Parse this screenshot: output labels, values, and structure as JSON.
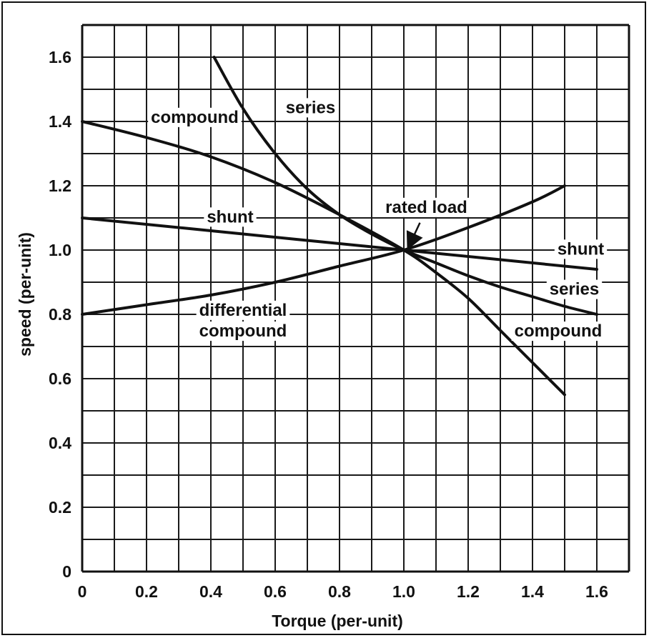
{
  "chart_data": {
    "type": "line",
    "title": "",
    "xlabel": "Torque (per-unit)",
    "ylabel": "speed (per-unit)",
    "xlim": [
      0,
      1.7
    ],
    "ylim": [
      0,
      1.7
    ],
    "grid": true,
    "x_ticks": [
      "0",
      "0.2",
      "0.4",
      "0.6",
      "0.8",
      "1.0",
      "1.2",
      "1.4",
      "1.6"
    ],
    "y_ticks": [
      "0",
      "0.2",
      "0.4",
      "0.6",
      "0.8",
      "1.0",
      "1.2",
      "1.4",
      "1.6"
    ],
    "series": [
      {
        "name": "series",
        "x": [
          0.41,
          0.5,
          0.6,
          0.7,
          0.8,
          0.9,
          1.0,
          1.1,
          1.2,
          1.3,
          1.4,
          1.5,
          1.6
        ],
        "y": [
          1.6,
          1.44,
          1.3,
          1.19,
          1.11,
          1.05,
          1.0,
          0.96,
          0.92,
          0.885,
          0.855,
          0.825,
          0.8
        ]
      },
      {
        "name": "compound",
        "x": [
          0,
          0.2,
          0.4,
          0.6,
          0.8,
          1.0,
          1.1,
          1.2,
          1.3,
          1.4,
          1.5
        ],
        "y": [
          1.4,
          1.35,
          1.29,
          1.21,
          1.11,
          1.0,
          0.93,
          0.85,
          0.75,
          0.65,
          0.55
        ]
      },
      {
        "name": "shunt",
        "x": [
          0,
          0.5,
          1.0,
          1.6
        ],
        "y": [
          1.1,
          1.05,
          1.0,
          0.94
        ]
      },
      {
        "name": "differential compound",
        "x": [
          0,
          0.2,
          0.4,
          0.6,
          0.8,
          1.0,
          1.2,
          1.4,
          1.5
        ],
        "y": [
          0.8,
          0.83,
          0.86,
          0.9,
          0.95,
          1.0,
          1.07,
          1.15,
          1.2
        ]
      }
    ],
    "annotations": [
      {
        "text": "series",
        "x": 0.71,
        "y": 1.44
      },
      {
        "text": "compound",
        "x": 0.35,
        "y": 1.41
      },
      {
        "text": "shunt",
        "x": 0.46,
        "y": 1.1
      },
      {
        "text": "rated load",
        "x": 1.07,
        "y": 1.13
      },
      {
        "text": "differential",
        "x": 0.5,
        "y": 0.81
      },
      {
        "text": "compound",
        "x": 0.5,
        "y": 0.745
      },
      {
        "text": "shunt",
        "x": 1.55,
        "y": 1.0
      },
      {
        "text": "series",
        "x": 1.53,
        "y": 0.875
      },
      {
        "text": "compound",
        "x": 1.48,
        "y": 0.745
      }
    ]
  }
}
